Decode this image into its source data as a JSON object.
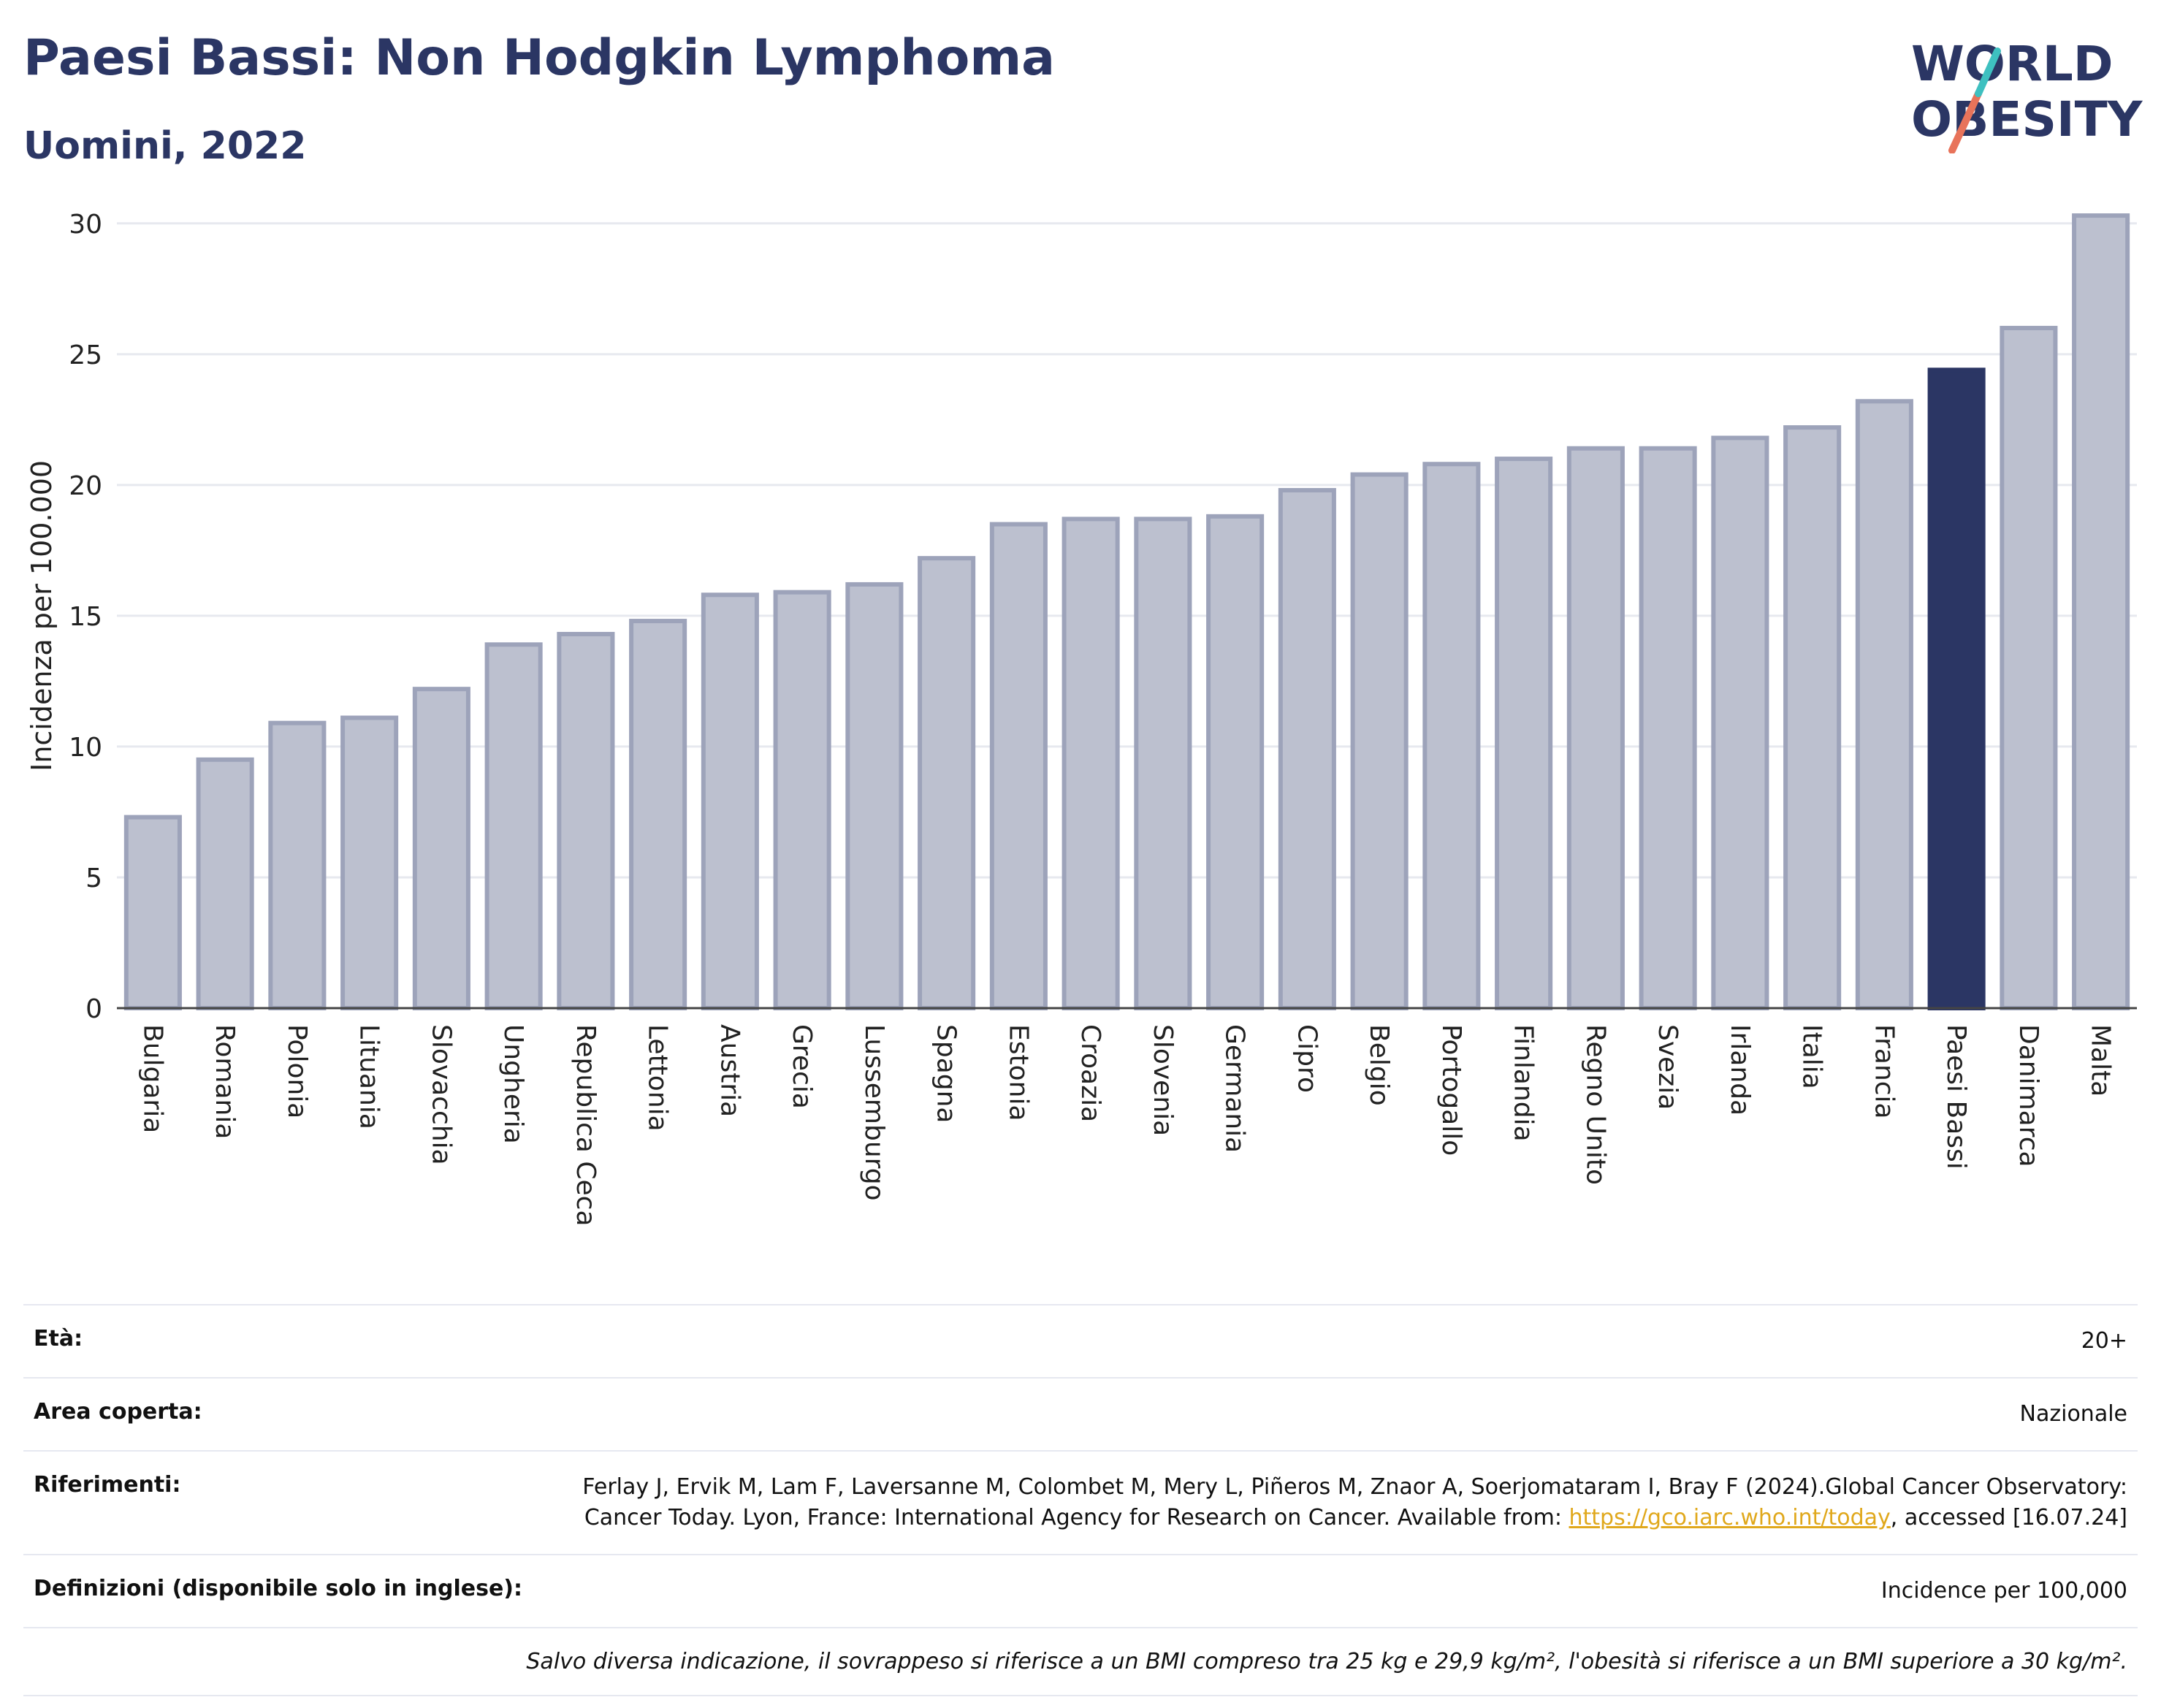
{
  "header": {
    "title": "Paesi Bassi: Non Hodgkin Lymphoma",
    "subtitle": "Uomini, 2022",
    "logo_line1": "WORLD",
    "logo_line2": "OBESITY"
  },
  "colors": {
    "bar": "#bcc0cf",
    "bar_border": "#9da3ba",
    "highlight": "#2b3664",
    "grid": "#e7e9ef",
    "logo_teal": "#3ec0c0",
    "logo_coral": "#e8735a"
  },
  "chart_data": {
    "type": "bar",
    "ylabel": "Incidenza per 100.000",
    "ylim": [
      0,
      31
    ],
    "yticks": [
      0,
      5,
      10,
      15,
      20,
      25,
      30
    ],
    "grid": true,
    "highlight": "Paesi Bassi",
    "categories": [
      "Bulgaria",
      "Romania",
      "Polonia",
      "Lituania",
      "Slovacchia",
      "Ungheria",
      "Republica Ceca",
      "Lettonia",
      "Austria",
      "Grecia",
      "Lussemburgo",
      "Spagna",
      "Estonia",
      "Croazia",
      "Slovenia",
      "Germania",
      "Cipro",
      "Belgio",
      "Portogallo",
      "Finlandia",
      "Regno Unito",
      "Svezia",
      "Irlanda",
      "Italia",
      "Francia",
      "Paesi Bassi",
      "Danimarca",
      "Malta"
    ],
    "values": [
      7.3,
      9.5,
      10.9,
      11.1,
      12.2,
      13.9,
      14.3,
      14.8,
      15.8,
      15.9,
      16.2,
      17.2,
      18.5,
      18.7,
      18.7,
      18.8,
      19.8,
      20.4,
      20.8,
      21.0,
      21.4,
      21.4,
      21.8,
      22.2,
      23.2,
      24.4,
      26.0,
      30.3
    ]
  },
  "meta": {
    "age_label": "Età:",
    "age_value": "20+",
    "area_label": "Area coperta:",
    "area_value": "Nazionale",
    "refs_label": "Riferimenti:",
    "refs_text_1": "Ferlay J, Ervik M, Lam F, Laversanne M, Colombet M, Mery L, Piñeros M, Znaor A, Soerjomataram I, Bray F (2024).Global Cancer Observatory: Cancer Today. Lyon, France: International Agency for Research on Cancer. Available from: ",
    "refs_link": "https://gco.iarc.who.int/today",
    "refs_text_2": ", accessed [16.07.24]",
    "defs_label": "Definizioni (disponibile solo in inglese):",
    "defs_value": "Incidence per 100,000",
    "note": "Salvo diversa indicazione, il sovrappeso si riferisce a un BMI compreso tra 25 kg e 29,9 kg/m², l'obesità si riferisce a un BMI superiore a 30 kg/m²."
  }
}
